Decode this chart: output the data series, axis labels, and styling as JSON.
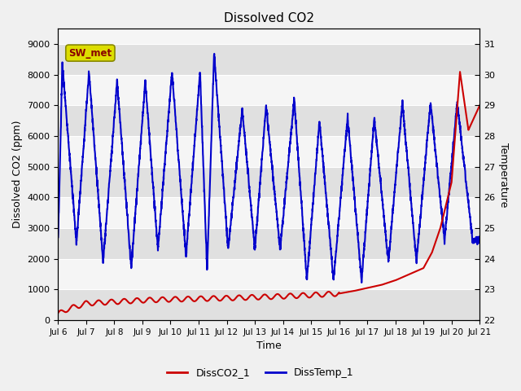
{
  "title": "Dissolved CO2",
  "xlabel": "Time",
  "ylabel_left": "Dissolved CO2 (ppm)",
  "ylabel_right": "Temperature",
  "legend_label": "SW_met",
  "series_labels": [
    "DissCO2_1",
    "DissTemp_1"
  ],
  "series_colors": [
    "#cc0000",
    "#0000cc"
  ],
  "ylim_left": [
    0,
    9500
  ],
  "ylim_right": [
    22.0,
    31.5
  ],
  "yticks_left": [
    0,
    1000,
    2000,
    3000,
    4000,
    5000,
    6000,
    7000,
    8000,
    9000
  ],
  "yticks_right": [
    22.0,
    23.0,
    24.0,
    25.0,
    26.0,
    27.0,
    28.0,
    29.0,
    30.0,
    31.0
  ],
  "xtick_labels": [
    "Jul 6",
    "Jul 7",
    "Jul 8",
    "Jul 9",
    "Jul 10",
    "Jul 11",
    "Jul 12",
    "Jul 13",
    "Jul 14",
    "Jul 15",
    "Jul 16",
    "Jul 17",
    "Jul 18",
    "Jul 19",
    "Jul 20",
    "Jul 21"
  ],
  "xtick_positions": [
    0,
    1,
    2,
    3,
    4,
    5,
    6,
    7,
    8,
    9,
    10,
    11,
    12,
    13,
    14,
    15
  ],
  "fig_bg_color": "#f0f0f0",
  "plot_bg_light": "#f5f5f5",
  "plot_bg_dark": "#e0e0e0",
  "grid_color": "#ffffff",
  "linewidth": 1.5,
  "legend_linewidth": 2.0,
  "legend_box_facecolor": "#dddd00",
  "legend_box_edgecolor": "#888800",
  "legend_text_color": "#880000"
}
